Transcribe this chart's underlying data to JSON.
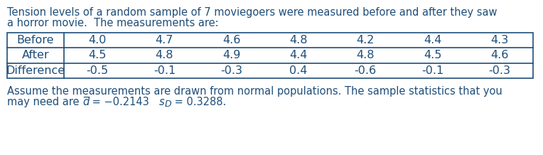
{
  "line1": "Tension levels of a random sample of 7 moviegoers were measured before and after they saw",
  "line2": "a horror movie.  The measurements are:",
  "row_labels": [
    "Before",
    "After",
    "Difference"
  ],
  "data": [
    [
      "4.0",
      "4.7",
      "4.6",
      "4.8",
      "4.2",
      "4.4",
      "4.3"
    ],
    [
      "4.5",
      "4.8",
      "4.9",
      "4.4",
      "4.8",
      "4.5",
      "4.6"
    ],
    [
      "-0.5",
      "-0.1",
      "-0.3",
      "0.4",
      "-0.6",
      "-0.1",
      "-0.3"
    ]
  ],
  "footer_line1": "Assume the measurements are drawn from normal populations. The sample statistics that you",
  "footer_line2_pre": "may need are ",
  "footer_line2_post": " = −0.2143   ",
  "footer_line2_end": " = 0.3288.",
  "text_color": "#1f4e79",
  "bg_color": "#ffffff",
  "font_size": 10.5,
  "table_font_size": 11.5
}
